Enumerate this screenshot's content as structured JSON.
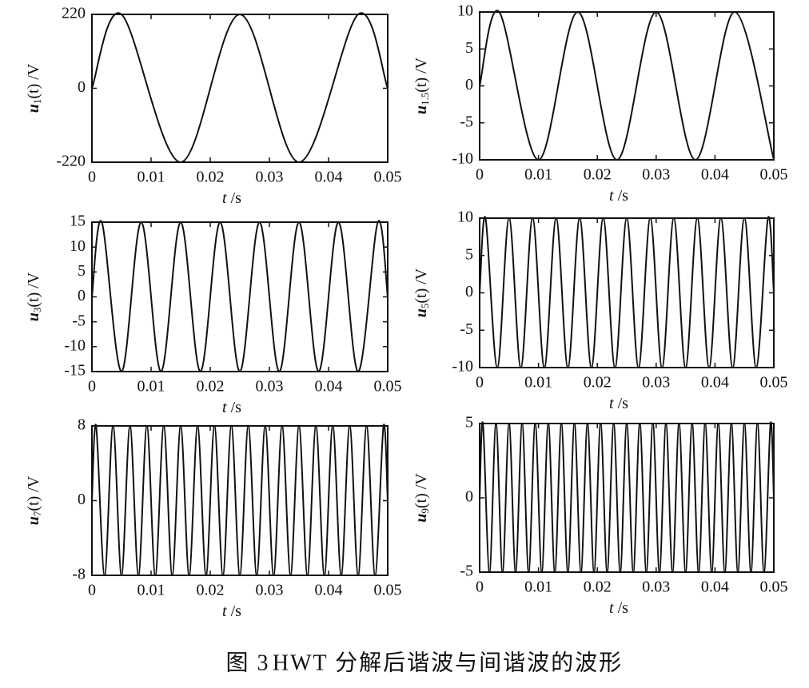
{
  "chart_data": [
    {
      "type": "line",
      "ylabel": [
        "u",
        "1",
        "(t) /V"
      ],
      "xlabel": [
        "t",
        " /s"
      ],
      "color": "#111111",
      "x": [
        0,
        0.005,
        0.015,
        0.025,
        0.035,
        0.045,
        0.05
      ],
      "values": [
        0,
        220,
        -220,
        220,
        -220,
        220,
        0
      ],
      "xlim": [
        0,
        0.05
      ],
      "ylim": [
        -220,
        220
      ],
      "xticks": [
        0,
        0.01,
        0.02,
        0.03,
        0.04,
        0.05
      ],
      "yticks": [
        -220,
        0,
        220
      ]
    },
    {
      "type": "line",
      "ylabel": [
        "u",
        "1.5",
        "(t) /V"
      ],
      "xlabel": [
        "t",
        " /s"
      ],
      "color": "#111111",
      "x": [
        0,
        0.00333,
        0.01,
        0.01667,
        0.02333,
        0.03,
        0.03667,
        0.04333,
        0.05
      ],
      "values": [
        0,
        10,
        -10,
        10,
        -10,
        10,
        -10,
        10,
        -10
      ],
      "xlim": [
        0,
        0.05
      ],
      "ylim": [
        -10,
        10
      ],
      "xticks": [
        0,
        0.01,
        0.02,
        0.03,
        0.04,
        0.05
      ],
      "yticks": [
        -10,
        -5,
        0,
        5,
        10
      ]
    },
    {
      "type": "line",
      "ylabel": [
        "u",
        "3",
        "(t) /V"
      ],
      "xlabel": [
        "t",
        " /s"
      ],
      "color": "#111111",
      "x": [
        0,
        0.00167,
        0.005,
        0.00833,
        0.01167,
        0.015,
        0.01833,
        0.02167,
        0.025,
        0.02833,
        0.03167,
        0.035,
        0.03833,
        0.04167,
        0.045,
        0.04833,
        0.05
      ],
      "values": [
        0,
        15,
        -15,
        15,
        -15,
        15,
        -15,
        15,
        -15,
        15,
        -15,
        15,
        -15,
        15,
        -15,
        15,
        0
      ],
      "xlim": [
        0,
        0.05
      ],
      "ylim": [
        -15,
        15
      ],
      "xticks": [
        0,
        0.01,
        0.02,
        0.03,
        0.04,
        0.05
      ],
      "yticks": [
        -15,
        -10,
        -5,
        0,
        5,
        10,
        15
      ]
    },
    {
      "type": "line",
      "ylabel": [
        "u",
        "5",
        "(t) /V"
      ],
      "xlabel": [
        "t",
        " /s"
      ],
      "color": "#111111",
      "x": [
        0,
        0.001,
        0.003,
        0.005,
        0.007,
        0.009,
        0.011,
        0.013,
        0.015,
        0.017,
        0.019,
        0.021,
        0.023,
        0.025,
        0.027,
        0.029,
        0.031,
        0.033,
        0.035,
        0.037,
        0.039,
        0.041,
        0.043,
        0.045,
        0.047,
        0.049,
        0.05
      ],
      "values": [
        0,
        10,
        -10,
        10,
        -10,
        10,
        -10,
        10,
        -10,
        10,
        -10,
        10,
        -10,
        10,
        -10,
        10,
        -10,
        10,
        -10,
        10,
        -10,
        10,
        -10,
        10,
        -10,
        10,
        0
      ],
      "xlim": [
        0,
        0.05
      ],
      "ylim": [
        -10,
        10
      ],
      "xticks": [
        0,
        0.01,
        0.02,
        0.03,
        0.04,
        0.05
      ],
      "yticks": [
        -10,
        -5,
        0,
        5,
        10
      ]
    },
    {
      "type": "line",
      "ylabel": [
        "u",
        "7",
        "(t) /V"
      ],
      "xlabel": [
        "t",
        " /s"
      ],
      "color": "#111111",
      "x": [
        0,
        0.00071,
        0.00214,
        0.00357,
        0.005,
        0.00643,
        0.00786,
        0.00929,
        0.01071,
        0.01214,
        0.01357,
        0.015,
        0.01643,
        0.01786,
        0.01929,
        0.02071,
        0.02214,
        0.02357,
        0.025,
        0.02643,
        0.02786,
        0.02929,
        0.03071,
        0.03214,
        0.03357,
        0.035,
        0.03643,
        0.03786,
        0.03929,
        0.04071,
        0.04214,
        0.04357,
        0.045,
        0.04643,
        0.04786,
        0.04929,
        0.05
      ],
      "values": [
        0,
        8,
        -8,
        8,
        -8,
        8,
        -8,
        8,
        -8,
        8,
        -8,
        8,
        -8,
        8,
        -8,
        8,
        -8,
        8,
        -8,
        8,
        -8,
        8,
        -8,
        8,
        -8,
        8,
        -8,
        8,
        -8,
        8,
        -8,
        8,
        -8,
        8,
        -8,
        8,
        0
      ],
      "xlim": [
        0,
        0.05
      ],
      "ylim": [
        -8,
        8
      ],
      "xticks": [
        0,
        0.01,
        0.02,
        0.03,
        0.04,
        0.05
      ],
      "yticks": [
        -8,
        0,
        8
      ]
    },
    {
      "type": "line",
      "ylabel": [
        "u",
        "9",
        "(t) /V"
      ],
      "xlabel": [
        "t",
        " /s"
      ],
      "color": "#111111",
      "x": [
        0,
        0.00056,
        0.00167,
        0.00278,
        0.00389,
        0.005,
        0.00611,
        0.00722,
        0.00833,
        0.00944,
        0.01056,
        0.01167,
        0.01278,
        0.01389,
        0.015,
        0.01611,
        0.01722,
        0.01833,
        0.01944,
        0.02056,
        0.02167,
        0.02278,
        0.02389,
        0.025,
        0.02611,
        0.02722,
        0.02833,
        0.02944,
        0.03056,
        0.03167,
        0.03278,
        0.03389,
        0.035,
        0.03611,
        0.03722,
        0.03833,
        0.03944,
        0.04056,
        0.04167,
        0.04278,
        0.04389,
        0.045,
        0.04611,
        0.04722,
        0.04833,
        0.04944,
        0.05
      ],
      "values": [
        0,
        5,
        -5,
        5,
        -5,
        5,
        -5,
        5,
        -5,
        5,
        -5,
        5,
        -5,
        5,
        -5,
        5,
        -5,
        5,
        -5,
        5,
        -5,
        5,
        -5,
        5,
        -5,
        5,
        -5,
        5,
        -5,
        5,
        -5,
        5,
        -5,
        5,
        -5,
        5,
        -5,
        5,
        -5,
        5,
        -5,
        5,
        -5,
        5,
        -5,
        5,
        0
      ],
      "xlim": [
        0,
        0.05
      ],
      "ylim": [
        -5,
        5
      ],
      "xticks": [
        0,
        0.01,
        0.02,
        0.03,
        0.04,
        0.05
      ],
      "yticks": [
        -5,
        0,
        5
      ]
    }
  ],
  "caption": {
    "figure": "图 3",
    "text": "HWT 分解后谐波与间谐波的波形"
  }
}
